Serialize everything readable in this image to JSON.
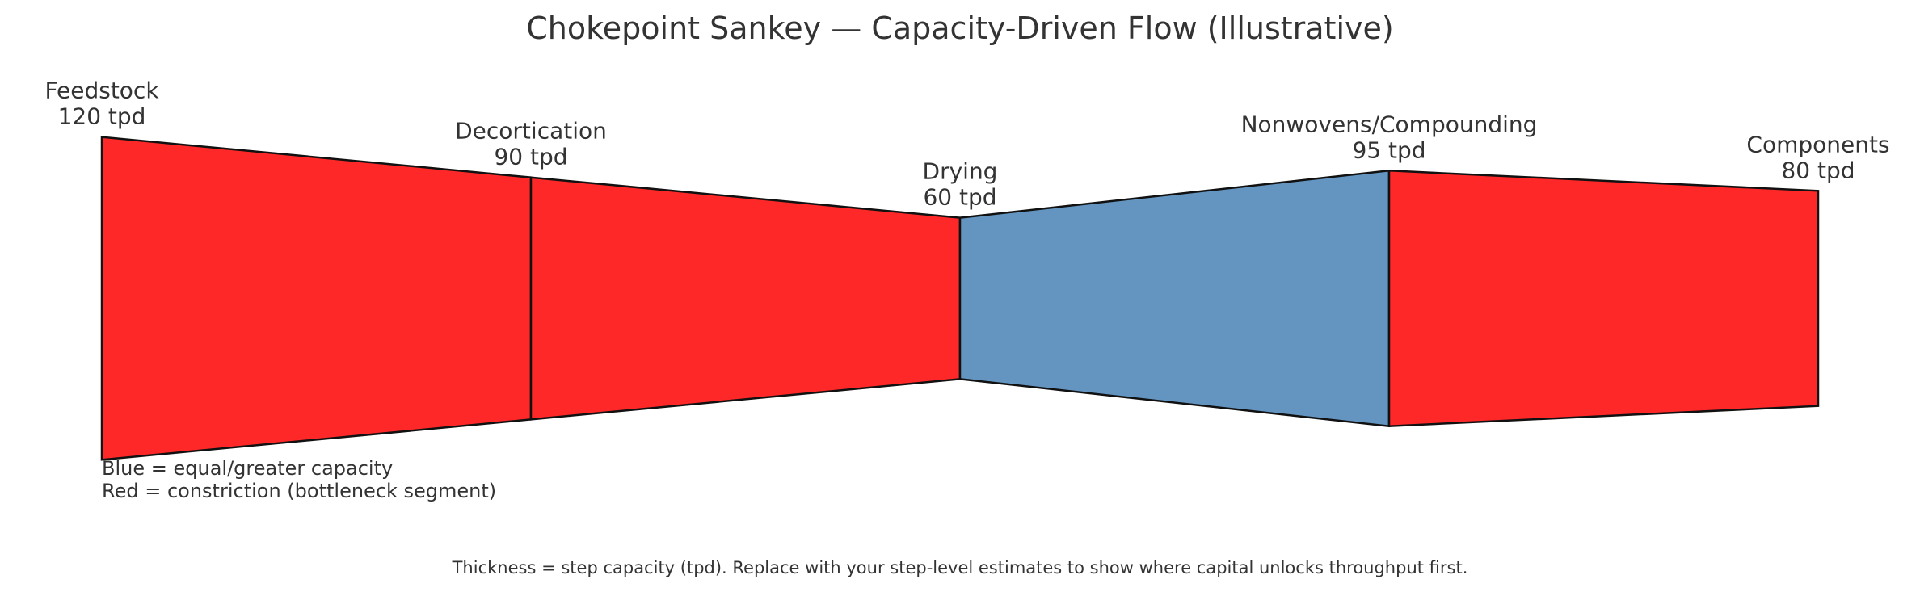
{
  "chart_data": {
    "type": "sankey",
    "title": "Chokepoint Sankey — Capacity-Driven Flow (Illustrative)",
    "unit": "tpd",
    "stages": [
      {
        "name": "Feedstock",
        "capacity_label": "120 tpd",
        "capacity": 120
      },
      {
        "name": "Decortication",
        "capacity_label": "90 tpd",
        "capacity": 90
      },
      {
        "name": "Drying",
        "capacity_label": "60 tpd",
        "capacity": 60
      },
      {
        "name": "Nonwovens/Compounding",
        "capacity_label": "95 tpd",
        "capacity": 95
      },
      {
        "name": "Components",
        "capacity_label": "80 tpd",
        "capacity": 80
      }
    ],
    "links": [
      {
        "from": "Feedstock",
        "to": "Decortication",
        "status": "constriction"
      },
      {
        "from": "Decortication",
        "to": "Drying",
        "status": "constriction"
      },
      {
        "from": "Drying",
        "to": "Nonwovens/Compounding",
        "status": "equal_or_greater"
      },
      {
        "from": "Nonwovens/Compounding",
        "to": "Components",
        "status": "constriction"
      }
    ],
    "colors": {
      "constriction": "#ff2828",
      "equal_or_greater": "#6495c0",
      "outline": "#111111"
    },
    "legend": {
      "position": "bottom-left",
      "lines": [
        "Blue = equal/greater capacity",
        "Red = constriction (bottleneck segment)"
      ]
    },
    "caption": "Thickness = step capacity (tpd). Replace with your step-level estimates to show where capital unlocks throughput first."
  }
}
